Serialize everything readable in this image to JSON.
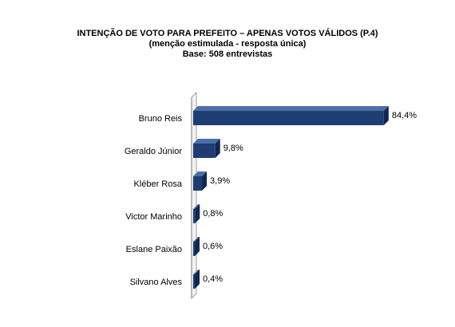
{
  "header": {
    "title": "INTENÇÃO DE VOTO PARA PREFEITO – APENAS VOTOS VÁLIDOS (P.4)",
    "subtitle": "(menção estimulada - resposta única)",
    "base": "Base: 508 entrevistas"
  },
  "chart_data": {
    "type": "bar",
    "orientation": "horizontal",
    "title": "INTENÇÃO DE VOTO PARA PREFEITO – APENAS VOTOS VÁLIDOS (P.4)",
    "subtitle": "(menção estimulada - resposta única)",
    "categories": [
      "Bruno Reis",
      "Geraldo Júnior",
      "Kléber Rosa",
      "Victor Marinho",
      "Eslane Paixão",
      "Silvano  Alves"
    ],
    "values": [
      84.4,
      9.8,
      3.9,
      0.8,
      0.6,
      0.4
    ],
    "value_labels": [
      "84,4%",
      "9,8%",
      "3,9%",
      "0,8%",
      "0,6%",
      "0,4%"
    ],
    "unit": "%",
    "xlim": [
      0,
      100
    ],
    "grid": false,
    "legend": "none",
    "bar_color": "#1f3d73",
    "bar_side_color": "#112650",
    "bar_top_color": "#4d6fa8"
  }
}
